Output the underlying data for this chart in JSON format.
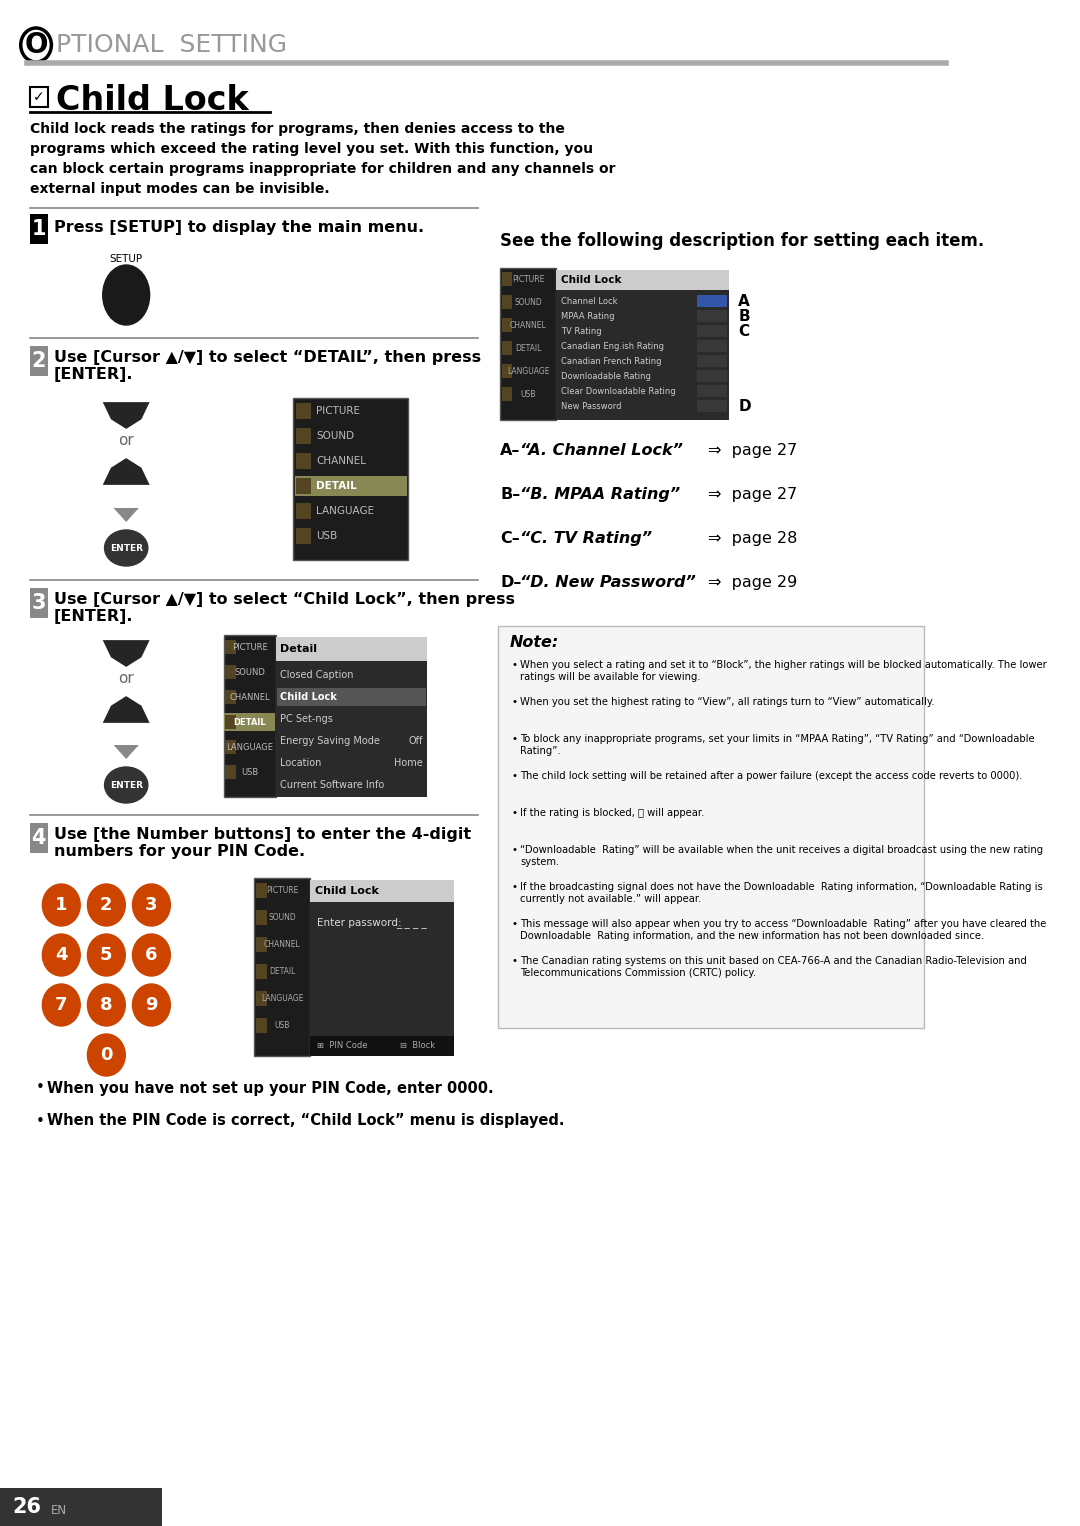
{
  "page_bg": "#ffffff",
  "header_O": "O",
  "header_color": "#888888",
  "title_text": "Child Lock",
  "intro_text": "Child lock reads the ratings for programs, then denies access to the\nprograms which exceed the rating level you set. With this function, you\ncan block certain programs inappropriate for children and any channels or\nexternal input modes can be invisible.",
  "step1_text": "Press [SETUP] to display the main menu.",
  "step2_line1": "Use [Cursor ▲/▼] to select “DETAIL”, then press",
  "step2_line2": "[ENTER].",
  "step3_line1": "Use [Cursor ▲/▼] to select “Child Lock”, then press",
  "step3_line2": "[ENTER].",
  "step4_line1": "Use [the Number buttons] to enter the 4-digit",
  "step4_line2": "numbers for your PIN Code.",
  "right_header": "See the following description for setting each item.",
  "label_A_left": "A– “A. Channel Lock”",
  "label_A_right": "⇒  page 27",
  "label_B_left": "B– “B. MPAA Rating”",
  "label_B_right": "⇒  page 27",
  "label_C_left": "C– “C. TV Rating”",
  "label_C_right": "⇒  page 28",
  "label_D_left": "D– “D. New Password”",
  "label_D_right": "⇒  page 29",
  "note_title": "Note:",
  "note_bullets": [
    "When you select a rating and set it to “Block”, the higher ratings will be blocked automatically. The lower ratings will be available for viewing.",
    "When you set the highest rating to “View”, all ratings turn to “View” automatically.",
    "To block any inappropriate programs, set your limits in “MPAA Rating”, “TV Rating” and “Downloadable  Rating”.",
    "The child lock setting will be retained after a power failure (except the access code reverts to 0000).",
    "If the rating is blocked, Ⓟ will appear.",
    "“Downloadable  Rating” will be available when the unit receives a digital broadcast using the new rating system.",
    "If the broadcasting signal does not have the Downloadable  Rating information, “Downloadable Rating is currently not available.” will appear.",
    "This message will also appear when you try to access “Downloadable  Rating” after you have cleared the Downloadable  Rating information, and the new information has not been downloaded since.",
    "The Canadian rating systems on this unit based on CEA-766-A and the Canadian Radio-Television and Telecommunications Commission (CRTC) policy."
  ],
  "bullet_pins": [
    "When you have not set up your PIN Code, enter 0000.",
    "When the PIN Code is correct, “Child Lock” menu is displayed."
  ],
  "page_num": "26",
  "footer_en": "EN",
  "menu_items_main": [
    "PICTURE",
    "SOUND",
    "CHANNEL",
    "DETAIL",
    "LANGUAGE",
    "USB"
  ],
  "menu_items_detail": [
    "Closed Caption",
    "Child Lock",
    "PC Set-ngs",
    "Energy Saving Mode",
    "Location",
    "Current Software Info"
  ],
  "menu_detail_values": [
    "",
    "",
    "",
    "Off",
    "Home",
    ""
  ],
  "menu_items_childlock": [
    "Channel Lock",
    "MPAA Rating",
    "TV Rating",
    "Canadian Eng.ish Rating",
    "Canadian French Rating",
    "Downloadable Rating",
    "Clear Downloadable Rating",
    "New Password"
  ]
}
